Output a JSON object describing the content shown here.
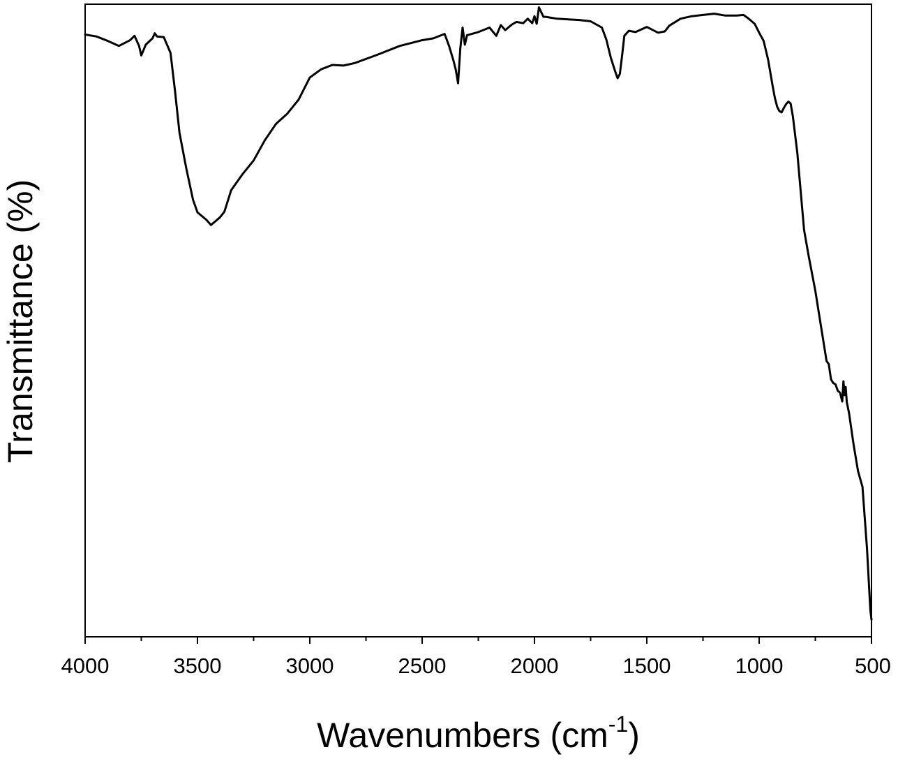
{
  "chart_data": {
    "type": "line",
    "xlabel": "Wavenumbers (cm",
    "xlabel_sup": "-1",
    "xlabel_close": ")",
    "ylabel": "Transmittance (%)",
    "xlim": [
      4000,
      500
    ],
    "ylim": [
      0,
      100
    ],
    "x_reversed": true,
    "y_ticks_labeled": false,
    "grid": false,
    "x_ticks_major": [
      4000,
      3500,
      3000,
      2500,
      2000,
      1500,
      1000,
      500
    ],
    "x_tick_labels": [
      "4000",
      "3500",
      "3000",
      "2500",
      "2000",
      "1500",
      "1000",
      "500"
    ],
    "x_ticks_minor": [
      3750,
      3250,
      2750,
      2250,
      1750,
      1250,
      750
    ],
    "series": [
      {
        "color": "#000000",
        "x": [
          4000,
          3950,
          3900,
          3850,
          3800,
          3780,
          3760,
          3750,
          3730,
          3700,
          3690,
          3680,
          3650,
          3620,
          3600,
          3580,
          3550,
          3520,
          3500,
          3480,
          3460,
          3440,
          3420,
          3400,
          3380,
          3350,
          3300,
          3250,
          3200,
          3150,
          3100,
          3050,
          3000,
          2950,
          2900,
          2850,
          2800,
          2700,
          2600,
          2500,
          2450,
          2400,
          2380,
          2360,
          2350,
          2340,
          2330,
          2320,
          2310,
          2300,
          2250,
          2200,
          2170,
          2150,
          2130,
          2100,
          2080,
          2050,
          2030,
          2010,
          2000,
          1990,
          1980,
          1960,
          1950,
          1900,
          1850,
          1800,
          1750,
          1700,
          1680,
          1660,
          1640,
          1630,
          1620,
          1610,
          1600,
          1580,
          1550,
          1500,
          1450,
          1420,
          1400,
          1350,
          1300,
          1250,
          1200,
          1150,
          1100,
          1070,
          1050,
          1020,
          1000,
          980,
          960,
          940,
          930,
          920,
          910,
          900,
          890,
          880,
          870,
          860,
          850,
          830,
          800,
          780,
          750,
          720,
          700,
          690,
          680,
          670,
          660,
          650,
          640,
          630,
          625,
          620,
          615,
          610,
          600,
          580,
          560,
          540,
          520,
          510,
          505,
          500
        ],
        "values": [
          95.2,
          94.9,
          94.2,
          93.4,
          94.3,
          95.0,
          93.4,
          91.9,
          93.6,
          94.6,
          95.4,
          94.9,
          94.8,
          92.3,
          86.3,
          79.7,
          74.1,
          69.1,
          67.1,
          66.5,
          65.9,
          65.1,
          65.7,
          66.3,
          67.2,
          70.6,
          73.1,
          75.3,
          78.5,
          81.1,
          82.7,
          84.9,
          88.4,
          89.7,
          90.4,
          90.3,
          90.7,
          92.0,
          93.4,
          94.3,
          94.6,
          95.3,
          93.4,
          91.0,
          89.6,
          87.5,
          93.0,
          96.3,
          93.6,
          95.1,
          95.6,
          96.3,
          95.0,
          96.7,
          95.9,
          96.8,
          97.2,
          97.0,
          97.7,
          97.0,
          98.1,
          96.9,
          99.5,
          98.0,
          98.0,
          97.7,
          97.6,
          97.5,
          97.3,
          96.3,
          94.4,
          91.5,
          89.3,
          88.3,
          89.0,
          91.9,
          95.0,
          95.8,
          95.6,
          96.4,
          95.5,
          95.7,
          96.6,
          97.7,
          98.1,
          98.3,
          98.5,
          98.2,
          98.2,
          98.3,
          97.8,
          96.9,
          95.5,
          94.2,
          91.2,
          87.1,
          85.2,
          83.8,
          83.1,
          82.9,
          83.6,
          84.2,
          84.6,
          84.3,
          82.3,
          76.5,
          64.3,
          60.3,
          54.7,
          48.0,
          43.6,
          43.1,
          40.7,
          40.1,
          39.9,
          38.9,
          38.6,
          37.2,
          40.4,
          38.2,
          39.5,
          37.1,
          35.4,
          30.5,
          26.2,
          23.7,
          13.9,
          7.4,
          4.2,
          2.7
        ]
      }
    ]
  }
}
